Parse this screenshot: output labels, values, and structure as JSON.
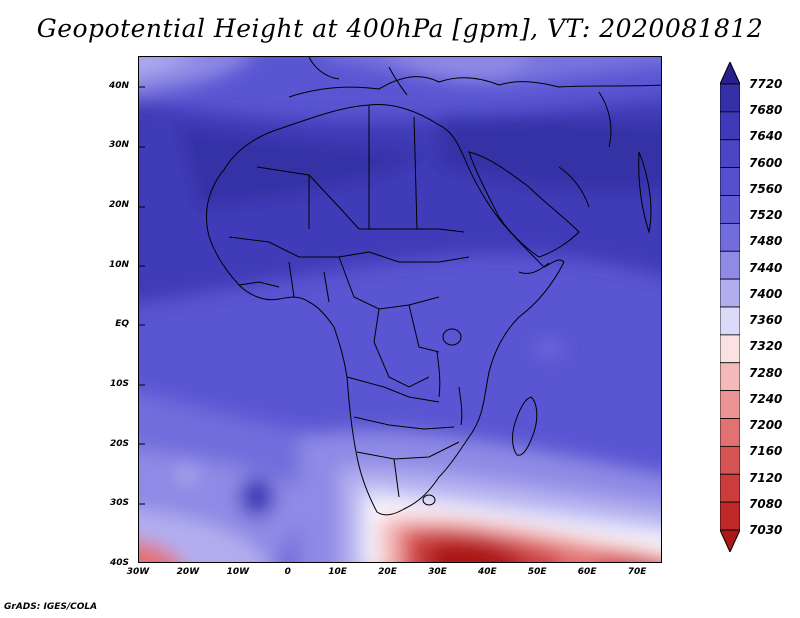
{
  "title": "Geopotential Height at 400hPa [gpm], VT: 2020081812",
  "footer": "GrADS: IGES/COLA",
  "map": {
    "region": "Africa",
    "field": "Geopotential Height",
    "level": "400hPa",
    "units": "gpm",
    "valid_time": "2020081812",
    "lon_range": [
      -30,
      75
    ],
    "lat_range": [
      -40,
      45
    ],
    "lat_ticks": [
      "40N",
      "30N",
      "20N",
      "10N",
      "EQ",
      "10S",
      "20S",
      "30S",
      "40S"
    ],
    "lat_values": [
      40,
      30,
      20,
      10,
      0,
      -10,
      -20,
      -30,
      -40
    ],
    "lon_ticks": [
      "30W",
      "20W",
      "10W",
      "0",
      "10E",
      "20E",
      "30E",
      "40E",
      "50E",
      "60E",
      "70E"
    ],
    "lon_values": [
      -30,
      -20,
      -10,
      0,
      10,
      20,
      30,
      40,
      50,
      60,
      70
    ],
    "colors": {
      "max_purple": "#2a1f8f",
      "mid_purple": "#5a55d2",
      "white": "#ffffff",
      "min_red": "#b31b1b"
    }
  },
  "colorbar": {
    "labels": [
      "7720",
      "7680",
      "7640",
      "7600",
      "7560",
      "7520",
      "7480",
      "7440",
      "7400",
      "7360",
      "7320",
      "7280",
      "7240",
      "7200",
      "7160",
      "7120",
      "7080",
      "7030"
    ],
    "colors": [
      "#2a1f8f",
      "#3530a6",
      "#3f3bb8",
      "#4a46c5",
      "#5550ce",
      "#5f5bd4",
      "#716ddc",
      "#8e8ae5",
      "#b1aeef",
      "#dcdaf8",
      "#fbe2e2",
      "#f4b9b9",
      "#ec9494",
      "#e27272",
      "#d65454",
      "#cb3c3c",
      "#bf2828",
      "#ab1818"
    ]
  }
}
